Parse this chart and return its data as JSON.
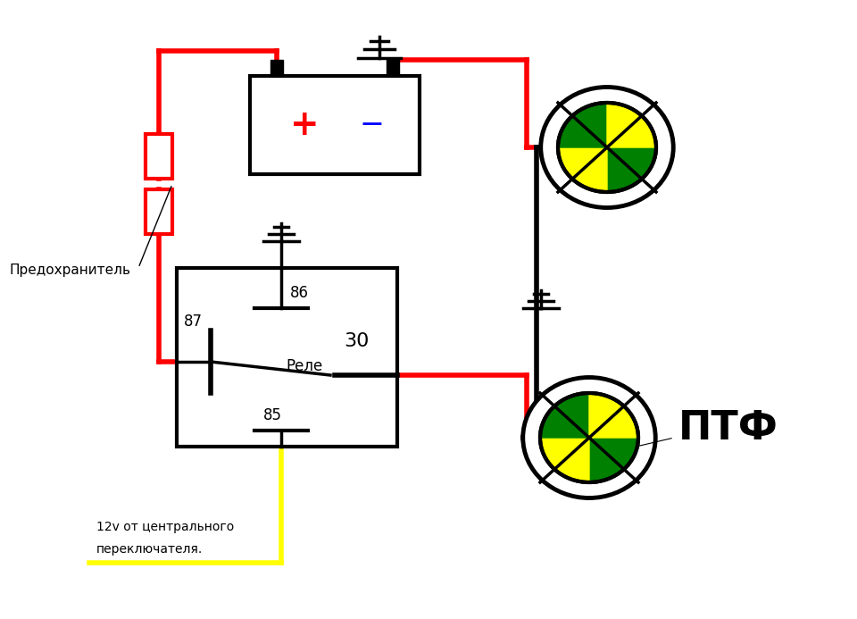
{
  "bg_color": "#ffffff",
  "red": "#ff0000",
  "black": "#000000",
  "yellow": "#ffff00",
  "blue": "#0000ff",
  "green": "#008000",
  "ptf_label": "ПТФ",
  "predohranitel_label": "Предохранитель",
  "rele_label": "Реле",
  "plus_label": "+",
  "minus_label": "−",
  "label_86": "86",
  "label_87": "87",
  "label_30": "30",
  "label_85": "85",
  "bottom_label1": "12v от центрального",
  "bottom_label2": "переключателя."
}
